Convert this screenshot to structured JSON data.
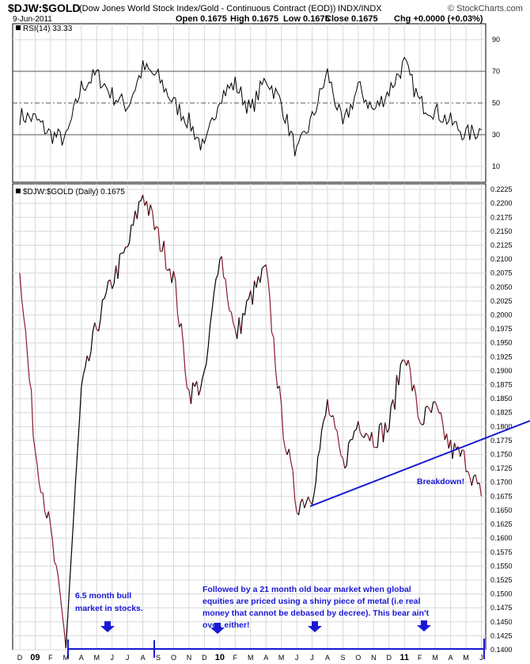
{
  "header": {
    "symbol": "$DJW:$GOLD",
    "description": "(Dow Jones World Stock Index/Gold - Continuous Contract (EOD))",
    "exchange": "INDX/INDX",
    "date": "9-Jun-2011",
    "site": "© StockCharts.com",
    "open": "Open 0.1675",
    "high": "High 0.1675",
    "low": "Low 0.1675",
    "close": "Close 0.1675",
    "change": "Chg +0.0000 (+0.03%)"
  },
  "rsi_panel": {
    "legend": "RSI(14) 33.33",
    "ticks": [
      "90",
      "70",
      "50",
      "30",
      "10"
    ]
  },
  "price_panel": {
    "legend": "$DJW:$GOLD (Daily) 0.1675",
    "ticks": [
      "0.2225",
      "0.2200",
      "0.2175",
      "0.2150",
      "0.2125",
      "0.2100",
      "0.2075",
      "0.2050",
      "0.2025",
      "0.2000",
      "0.1975",
      "0.1950",
      "0.1925",
      "0.1900",
      "0.1875",
      "0.1850",
      "0.1825",
      "0.1800",
      "0.1775",
      "0.1750",
      "0.1725",
      "0.1700",
      "0.1675",
      "0.1650",
      "0.1625",
      "0.1600",
      "0.1575",
      "0.1550",
      "0.1525",
      "0.1500",
      "0.1475",
      "0.1450",
      "0.1425",
      "0.1400"
    ]
  },
  "x_axis": {
    "labels": [
      {
        "text": "D",
        "kind": "month"
      },
      {
        "text": "09",
        "kind": "year"
      },
      {
        "text": "F",
        "kind": "month"
      },
      {
        "text": "M",
        "kind": "month"
      },
      {
        "text": "A",
        "kind": "month"
      },
      {
        "text": "M",
        "kind": "month"
      },
      {
        "text": "J",
        "kind": "month"
      },
      {
        "text": "J",
        "kind": "month"
      },
      {
        "text": "A",
        "kind": "month"
      },
      {
        "text": "S",
        "kind": "month"
      },
      {
        "text": "O",
        "kind": "month"
      },
      {
        "text": "N",
        "kind": "month"
      },
      {
        "text": "D",
        "kind": "month"
      },
      {
        "text": "10",
        "kind": "year"
      },
      {
        "text": "F",
        "kind": "month"
      },
      {
        "text": "M",
        "kind": "month"
      },
      {
        "text": "A",
        "kind": "month"
      },
      {
        "text": "M",
        "kind": "month"
      },
      {
        "text": "J",
        "kind": "month"
      },
      {
        "text": "J",
        "kind": "month"
      },
      {
        "text": "A",
        "kind": "month"
      },
      {
        "text": "S",
        "kind": "month"
      },
      {
        "text": "O",
        "kind": "month"
      },
      {
        "text": "N",
        "kind": "month"
      },
      {
        "text": "D",
        "kind": "month"
      },
      {
        "text": "11",
        "kind": "year"
      },
      {
        "text": "F",
        "kind": "month"
      },
      {
        "text": "M",
        "kind": "month"
      },
      {
        "text": "A",
        "kind": "month"
      },
      {
        "text": "M",
        "kind": "month"
      },
      {
        "text": "J",
        "kind": "month"
      }
    ]
  },
  "annotations": {
    "bull_text": [
      "6.5 month bull",
      "market in stocks."
    ],
    "bear_text": [
      "Followed by a 21 month old bear market when global",
      "equities are priced using a shiny piece of metal (i.e real",
      "money that cannot be debased by decree). This bear ain't",
      "over, either!"
    ],
    "breakdown": "Breakdown!"
  },
  "colors": {
    "price_up": "#000000",
    "price_down": "#8b1a2b",
    "annotation": "#1a1ad6",
    "grid": "#d8d8d8"
  },
  "chart_data": [
    {
      "type": "line",
      "title": "RSI(14) 33.33",
      "ylim": [
        0,
        100
      ],
      "reference_lines": [
        70,
        50,
        30
      ],
      "x": [
        "2008-12",
        "2009-01",
        "2009-02",
        "2009-03",
        "2009-04",
        "2009-05",
        "2009-06",
        "2009-07",
        "2009-08",
        "2009-09",
        "2009-10",
        "2009-11",
        "2009-12",
        "2010-01",
        "2010-02",
        "2010-03",
        "2010-04",
        "2010-05",
        "2010-06",
        "2010-07",
        "2010-08",
        "2010-09",
        "2010-10",
        "2010-11",
        "2010-12",
        "2011-01",
        "2011-02",
        "2011-03",
        "2011-04",
        "2011-05",
        "2011-06"
      ],
      "series": [
        {
          "name": "RSI(14)",
          "values": [
            42,
            40,
            30,
            27,
            60,
            68,
            55,
            48,
            72,
            66,
            50,
            38,
            20,
            55,
            62,
            45,
            66,
            50,
            18,
            40,
            69,
            35,
            60,
            45,
            58,
            75,
            50,
            45,
            38,
            30,
            33
          ]
        }
      ]
    },
    {
      "type": "line",
      "title": "$DJW:$GOLD (Daily) 0.1675",
      "ylim": [
        0.14,
        0.2235
      ],
      "x": [
        "2008-12",
        "2009-01",
        "2009-02",
        "2009-03",
        "2009-04",
        "2009-05",
        "2009-06",
        "2009-07",
        "2009-08",
        "2009-09",
        "2009-10",
        "2009-11",
        "2009-12",
        "2010-01",
        "2010-02",
        "2010-03",
        "2010-04",
        "2010-05",
        "2010-06",
        "2010-07",
        "2010-08",
        "2010-09",
        "2010-10",
        "2010-11",
        "2010-12",
        "2011-01",
        "2011-02",
        "2011-03",
        "2011-04",
        "2011-05",
        "2011-06"
      ],
      "series": [
        {
          "name": "$DJW:$GOLD",
          "values": [
            0.209,
            0.176,
            0.161,
            0.141,
            0.186,
            0.198,
            0.206,
            0.212,
            0.222,
            0.214,
            0.207,
            0.186,
            0.188,
            0.212,
            0.196,
            0.203,
            0.208,
            0.182,
            0.166,
            0.168,
            0.184,
            0.173,
            0.181,
            0.178,
            0.18,
            0.194,
            0.181,
            0.183,
            0.176,
            0.174,
            0.1675
          ]
        }
      ]
    }
  ]
}
